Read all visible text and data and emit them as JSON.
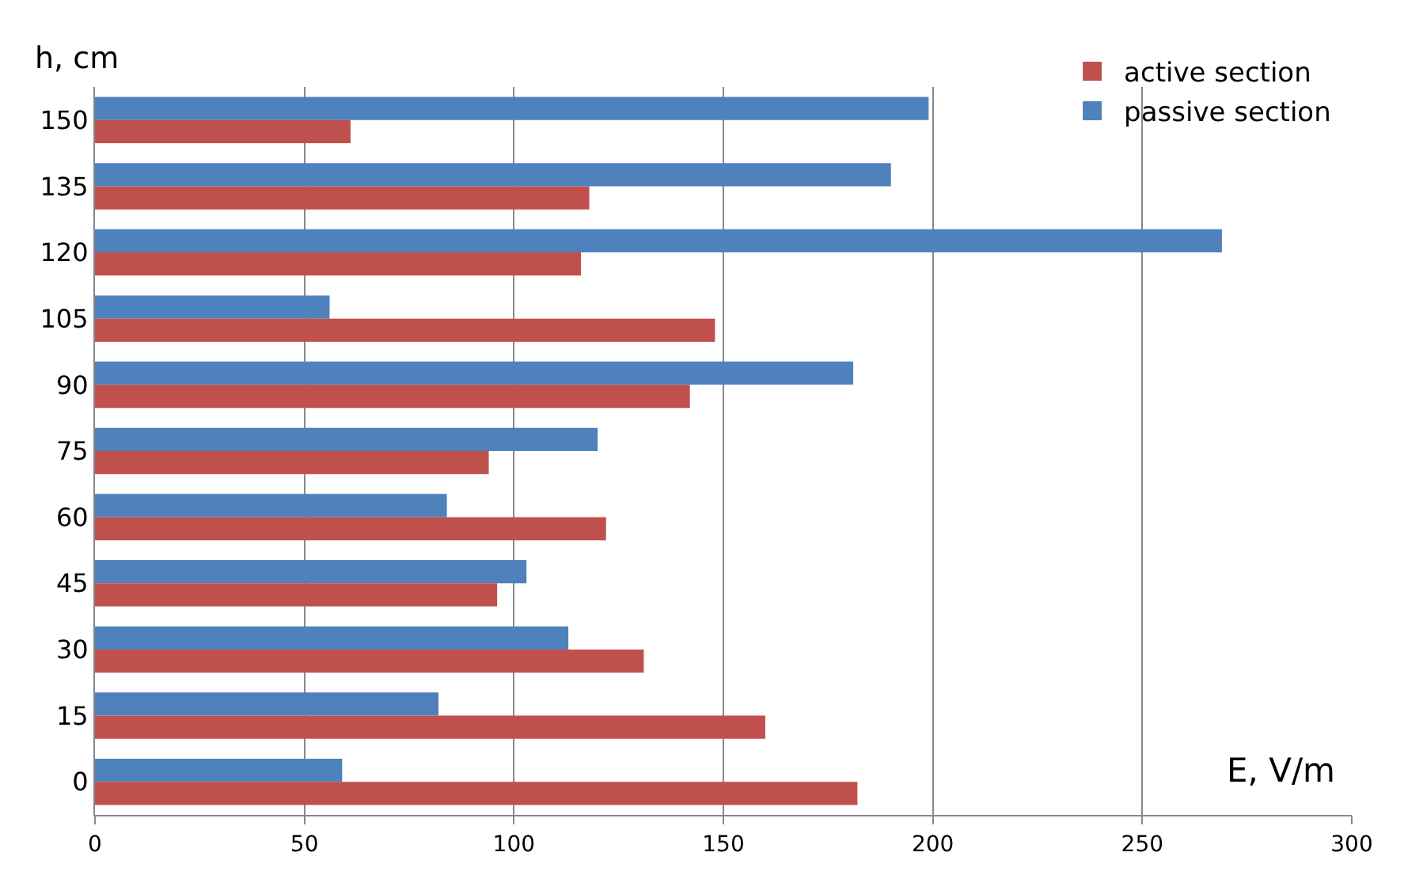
{
  "chart_data": {
    "type": "bar",
    "orientation": "horizontal",
    "xlabel": "E, V/m",
    "ylabel": "h, cm",
    "categories": [
      "150",
      "135",
      "120",
      "105",
      "90",
      "75",
      "60",
      "45",
      "30",
      "15",
      "0"
    ],
    "series": [
      {
        "name": "active section",
        "color": "#c0504d",
        "values": [
          61,
          118,
          116,
          148,
          142,
          94,
          122,
          96,
          131,
          160,
          182
        ]
      },
      {
        "name": "passive section",
        "color": "#4f81bd",
        "values": [
          199,
          190,
          269,
          56,
          181,
          120,
          84,
          103,
          113,
          82,
          59
        ]
      }
    ],
    "xlim": [
      0,
      300
    ],
    "xticks": [
      0,
      50,
      100,
      150,
      200,
      250,
      300
    ],
    "grid": "x",
    "legend": "top right"
  }
}
